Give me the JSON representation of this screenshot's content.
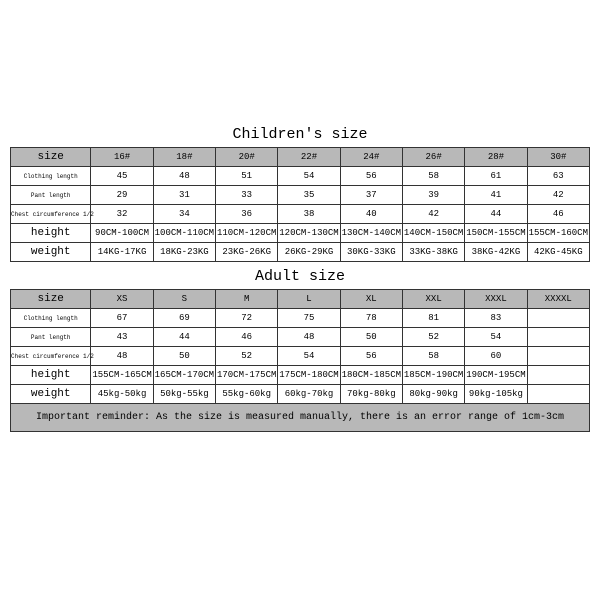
{
  "titles": {
    "children": "Children's size",
    "adult": "Adult size"
  },
  "children_table": {
    "row_labels": [
      "size",
      "Clothing length",
      "Pant length",
      "Chest circumference 1/2",
      "height",
      "weight"
    ],
    "rows": [
      [
        "16#",
        "18#",
        "20#",
        "22#",
        "24#",
        "26#",
        "28#",
        "30#"
      ],
      [
        "45",
        "48",
        "51",
        "54",
        "56",
        "58",
        "61",
        "63"
      ],
      [
        "29",
        "31",
        "33",
        "35",
        "37",
        "39",
        "41",
        "42"
      ],
      [
        "32",
        "34",
        "36",
        "38",
        "40",
        "42",
        "44",
        "46"
      ],
      [
        "90CM-100CM",
        "100CM-110CM",
        "110CM-120CM",
        "120CM-130CM",
        "130CM-140CM",
        "140CM-150CM",
        "150CM-155CM",
        "155CM-160CM"
      ],
      [
        "14KG-17KG",
        "18KG-23KG",
        "23KG-26KG",
        "26KG-29KG",
        "30KG-33KG",
        "33KG-38KG",
        "38KG-42KG",
        "42KG-45KG"
      ]
    ],
    "header_rows": [
      0
    ],
    "big_label_rows": [
      0,
      4,
      5
    ],
    "small_label_rows": [
      1,
      2,
      3
    ]
  },
  "adult_table": {
    "row_labels": [
      "size",
      "Clothing length",
      "Pant length",
      "Chest circumference 1/2",
      "height",
      "weight"
    ],
    "rows": [
      [
        "XS",
        "S",
        "M",
        "L",
        "XL",
        "XXL",
        "XXXL",
        "XXXXL"
      ],
      [
        "67",
        "69",
        "72",
        "75",
        "78",
        "81",
        "83",
        ""
      ],
      [
        "43",
        "44",
        "46",
        "48",
        "50",
        "52",
        "54",
        ""
      ],
      [
        "48",
        "50",
        "52",
        "54",
        "56",
        "58",
        "60",
        ""
      ],
      [
        "155CM-165CM",
        "165CM-170CM",
        "170CM-175CM",
        "175CM-180CM",
        "180CM-185CM",
        "185CM-190CM",
        "190CM-195CM",
        ""
      ],
      [
        "45kg-50kg",
        "50kg-55kg",
        "55kg-60kg",
        "60kg-70kg",
        "70kg-80kg",
        "80kg-90kg",
        "90kg-105kg",
        ""
      ]
    ],
    "header_rows": [
      0
    ],
    "big_label_rows": [
      0,
      4,
      5
    ],
    "small_label_rows": [
      1,
      2,
      3
    ]
  },
  "note": "Important reminder: As the size is measured manually, there is an error range of 1cm-3cm",
  "style": {
    "header_bg": "#b8b8b8",
    "border_color": "#333333",
    "page_bg": "#ffffff",
    "font": "Courier New",
    "cell_fontsize": 9,
    "title_fontsize": 15
  }
}
